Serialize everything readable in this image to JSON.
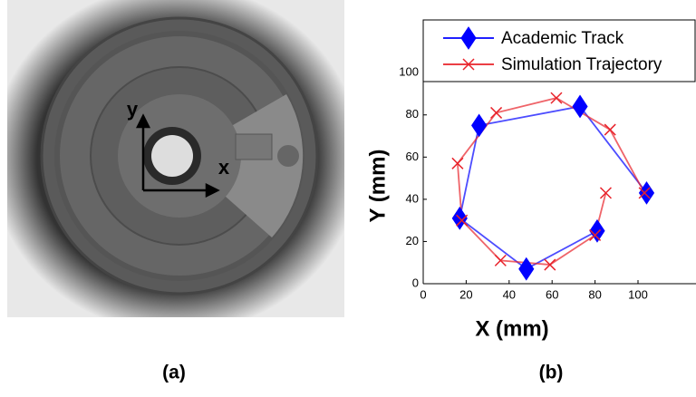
{
  "panel_a": {
    "label": "(a)",
    "axis_x": "x",
    "axis_y": "y"
  },
  "chart_data": {
    "type": "line",
    "label": "(b)",
    "xlabel": "X (mm)",
    "ylabel": "Y (mm)",
    "xlim": [
      0,
      127
    ],
    "ylim": [
      0,
      125
    ],
    "xticks": [
      0,
      20,
      40,
      60,
      80,
      100
    ],
    "yticks": [
      0,
      20,
      40,
      60,
      80,
      100
    ],
    "legend": "top",
    "series": [
      {
        "name": "Academic Track",
        "color": "#0000ff",
        "marker": "diamond",
        "x": [
          81,
          48,
          17,
          26,
          73,
          104
        ],
        "values": [
          25,
          7,
          31,
          75,
          84,
          43
        ]
      },
      {
        "name": "Simulation Trajectory",
        "color": "#e8222a",
        "marker": "x",
        "x": [
          85,
          80,
          59,
          36,
          18,
          16,
          34,
          62,
          87,
          103
        ],
        "values": [
          43,
          23,
          9,
          11,
          30,
          57,
          81,
          88,
          73,
          43
        ]
      }
    ]
  }
}
